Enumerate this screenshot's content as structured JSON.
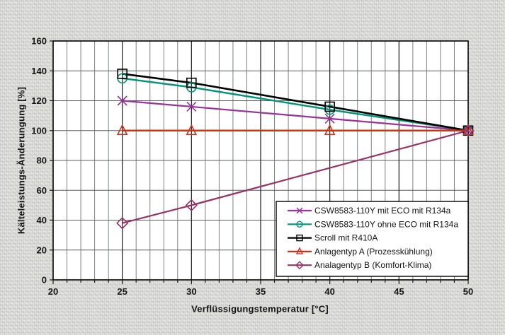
{
  "figure": {
    "background": "#d8d9d5",
    "plot_background": "#ffffff",
    "border_color": "#000000",
    "grid_minor_color": "#7d8281",
    "grid_major_color": "#1c1c1c",
    "grid_horizontal_color": "#5c5f5e",
    "tick_color": "#1c1c1c",
    "tick_label_color": "#161616",
    "legend_background": "#ffffff",
    "legend_border_color": "#000000"
  },
  "chart_data": {
    "type": "line",
    "title": "",
    "xlabel": "Verflüssigungstemperatur [°C]",
    "ylabel": "Kälteleistungs-Änderungung [%]",
    "xlim": [
      20,
      50
    ],
    "ylim": [
      0,
      160
    ],
    "x_ticks": [
      20,
      25,
      30,
      35,
      40,
      45,
      50
    ],
    "x_minor_step": 1,
    "y_ticks": [
      0,
      20,
      40,
      60,
      80,
      100,
      120,
      140,
      160
    ],
    "grid": "both",
    "legend_position": "inside-bottom-right",
    "series": [
      {
        "name": "CSW8583-110Y mit ECO mit R134a",
        "color": "#993399",
        "marker": "star",
        "points": [
          [
            25,
            120
          ],
          [
            30,
            116
          ],
          [
            40,
            108
          ],
          [
            50,
            100
          ]
        ]
      },
      {
        "name": "CSW8583-110Y ohne ECO mit R134a",
        "color": "#00957a",
        "marker": "circle",
        "points": [
          [
            25,
            135
          ],
          [
            30,
            129
          ],
          [
            40,
            114
          ],
          [
            50,
            100
          ]
        ]
      },
      {
        "name": "Scroll mit R410A",
        "color": "#000000",
        "marker": "square",
        "points": [
          [
            25,
            138
          ],
          [
            30,
            132
          ],
          [
            40,
            116
          ],
          [
            50,
            100
          ]
        ]
      },
      {
        "name": "Anlagentyp A (Prozesskühlung)",
        "color": "#cc3318",
        "marker": "triangle",
        "points": [
          [
            25,
            100
          ],
          [
            30,
            100
          ],
          [
            40,
            100
          ],
          [
            50,
            100
          ]
        ]
      },
      {
        "name": "Analagentyp B (Komfort-Klima)",
        "color": "#993366",
        "marker": "diamond",
        "points": [
          [
            25,
            38
          ],
          [
            30,
            50
          ],
          [
            50,
            100
          ]
        ]
      }
    ]
  }
}
